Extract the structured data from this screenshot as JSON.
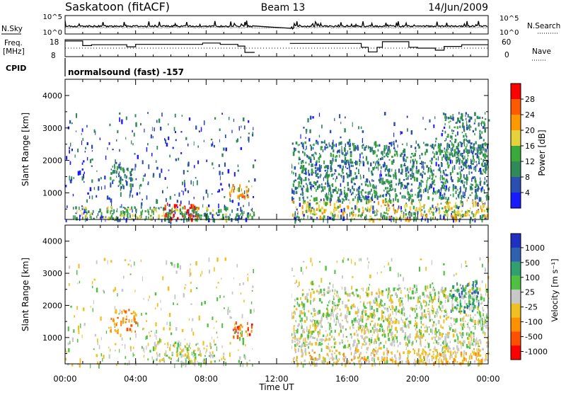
{
  "header": {
    "station": "Saskatoon (fitACF)",
    "beam": "Beam 13",
    "date": "14/Jun/2009"
  },
  "labels": {
    "nsky": "N.Sky",
    "nsearch": "N.Search",
    "freq_line1": "Freq.",
    "freq_line2": "[MHz]",
    "nave": "Nave",
    "cpid": "CPID",
    "cpid_value": "normalsound (fast) -157",
    "nsky_ticks": [
      "10^5",
      "10^0"
    ],
    "nsearch_ticks": [
      "10^5",
      "10^0"
    ],
    "freq_ticks": [
      "18",
      "8"
    ],
    "nave_ticks": [
      "60",
      "0"
    ]
  },
  "colors": {
    "power_scale": [
      "#1a1aff",
      "#2a4fb0",
      "#2f8a58",
      "#3aa83a",
      "#e6d23a",
      "#ff9900",
      "#ff5a00",
      "#ff0000"
    ],
    "velocity_scale": [
      "#2030c0",
      "#3060b0",
      "#30a070",
      "#50c040",
      "#c8c8c8",
      "#f0c020",
      "#ff9000",
      "#ff5000",
      "#ff0000"
    ]
  },
  "chart_data": [
    {
      "type": "line",
      "name": "noise-panel",
      "y_ticks_left": [
        "10^5",
        "10^0"
      ],
      "y_ticks_right": [
        "10^5",
        "10^0"
      ],
      "x_gap_hours": [
        10.75,
        12.75
      ]
    },
    {
      "type": "line",
      "name": "frequency-panel",
      "ylim_left": [
        8,
        18
      ],
      "ylim_right": [
        0,
        60
      ],
      "freq_steps": [
        [
          0,
          17.2
        ],
        [
          1.0,
          14.5
        ],
        [
          1.5,
          15.0
        ],
        [
          3.5,
          13.8
        ],
        [
          4.0,
          15.2
        ],
        [
          7.8,
          16.0
        ],
        [
          8.8,
          15.2
        ],
        [
          9.8,
          14.2
        ],
        [
          10.2,
          10.5
        ],
        [
          10.75,
          null
        ],
        [
          12.75,
          15.8
        ],
        [
          16.8,
          13.5
        ],
        [
          17.2,
          10.8
        ],
        [
          17.7,
          13.5
        ],
        [
          18.0,
          16.8
        ],
        [
          19.5,
          13.5
        ],
        [
          20.0,
          13.0
        ],
        [
          21.0,
          11.8
        ],
        [
          21.5,
          14.0
        ],
        [
          22.5,
          15.0
        ],
        [
          24.0,
          15.0
        ]
      ]
    },
    {
      "type": "heatmap",
      "name": "power",
      "xlabel": "",
      "ylabel": "Slant Range [km]",
      "colorbar_label": "Power [dB]",
      "colorbar_ticks": [
        "28",
        "24",
        "20",
        "16",
        "12",
        "8",
        "4"
      ],
      "xlim_hours": [
        0,
        24
      ],
      "ylim_km": [
        180,
        4500
      ],
      "y_ticks": [
        1000,
        2000,
        3000,
        4000
      ],
      "x_gap_hours": [
        10.75,
        12.75
      ],
      "features": [
        {
          "t": [
            5.5,
            7.6
          ],
          "r": [
            200,
            700
          ],
          "level": 7
        },
        {
          "t": [
            0.4,
            10.7
          ],
          "r": [
            200,
            600
          ],
          "level": 3
        },
        {
          "t": [
            2.5,
            3.8
          ],
          "r": [
            1200,
            1900
          ],
          "level": 2
        },
        {
          "t": [
            9.3,
            10.6
          ],
          "r": [
            900,
            1300
          ],
          "level": 5
        },
        {
          "t": [
            12.75,
            24
          ],
          "r": [
            200,
            800
          ],
          "level": 4
        },
        {
          "t": [
            12.75,
            24
          ],
          "r": [
            800,
            2600
          ],
          "level": 2
        },
        {
          "t": [
            21.5,
            23.8
          ],
          "r": [
            2000,
            3500
          ],
          "level": 2
        }
      ]
    },
    {
      "type": "heatmap",
      "name": "velocity",
      "xlabel": "Time UT",
      "ylabel": "Slant Range [km]",
      "colorbar_label": "Velocity [m s⁻¹]",
      "colorbar_ticks": [
        "1000",
        "500",
        "100",
        "25",
        "-25",
        "-100",
        "-500",
        "-1000"
      ],
      "xlim_hours": [
        0,
        24
      ],
      "ylim_km": [
        180,
        4500
      ],
      "y_ticks": [
        1000,
        2000,
        3000,
        4000
      ],
      "x_ticks": [
        "00:00",
        "04:00",
        "08:00",
        "12:00",
        "16:00",
        "20:00",
        "00:00"
      ],
      "x_gap_hours": [
        10.75,
        12.75
      ],
      "features": [
        {
          "t": [
            5.0,
            8.5
          ],
          "r": [
            200,
            900
          ],
          "level": 4
        },
        {
          "t": [
            2.5,
            4.0
          ],
          "r": [
            1200,
            1900
          ],
          "level": 6
        },
        {
          "t": [
            9.5,
            10.6
          ],
          "r": [
            1000,
            1500
          ],
          "level": 7
        },
        {
          "t": [
            12.75,
            24
          ],
          "r": [
            200,
            700
          ],
          "level": 5
        },
        {
          "t": [
            12.75,
            24
          ],
          "r": [
            700,
            2600
          ],
          "level": 4
        },
        {
          "t": [
            21.8,
            23.5
          ],
          "r": [
            1800,
            2800
          ],
          "level": 2
        }
      ]
    }
  ]
}
